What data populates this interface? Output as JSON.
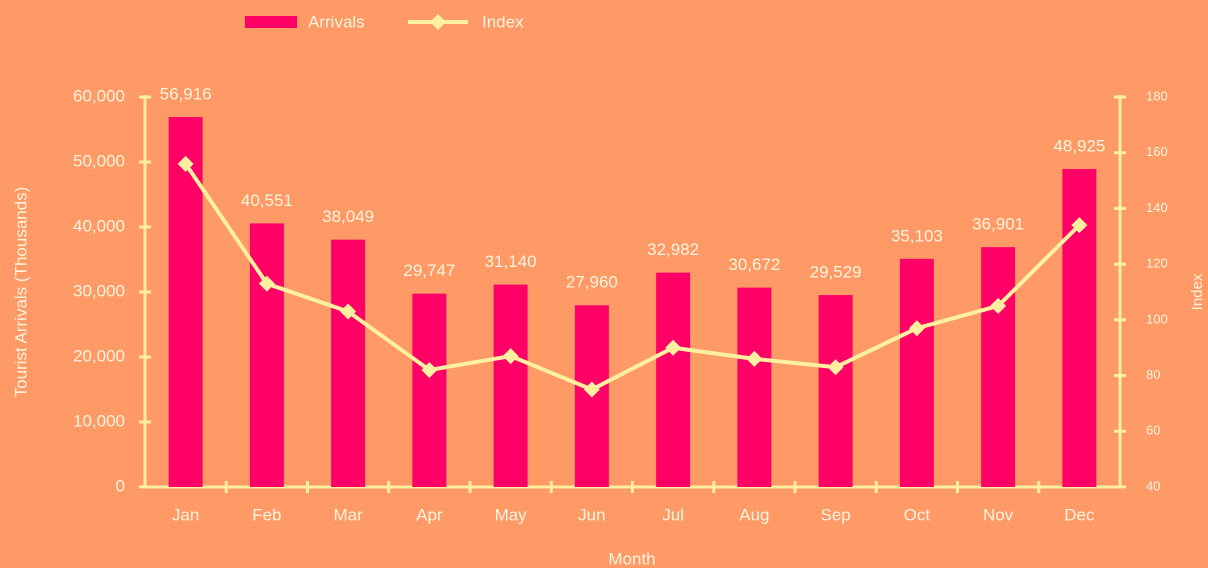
{
  "chart_data": {
    "type": "bar_line",
    "categories": [
      "Jan",
      "Feb",
      "Mar",
      "Apr",
      "May",
      "Jun",
      "Jul",
      "Aug",
      "Sep",
      "Oct",
      "Nov",
      "Dec"
    ],
    "series": [
      {
        "name": "Arrivals",
        "type": "bar",
        "color": "#ff0066",
        "values": [
          56916,
          40551,
          38049,
          29747,
          31140,
          27960,
          32982,
          30672,
          29529,
          35103,
          36901,
          48925
        ],
        "value_labels": [
          "56,916",
          "40,551",
          "38,049",
          "29,747",
          "31,140",
          "27,960",
          "32,982",
          "30,672",
          "29,529",
          "35,103",
          "36,901",
          "48,925"
        ]
      },
      {
        "name": "Index",
        "type": "line",
        "axis": "y2",
        "color": "#fff0a0",
        "values": [
          156,
          113,
          103,
          82,
          87,
          75,
          90,
          86,
          83,
          97,
          105,
          134
        ]
      }
    ],
    "x_label": "Month",
    "y_label": "Tourist Arrivals (Thousands)",
    "y2_label": "Index",
    "ylim": [
      0,
      60000
    ],
    "yticks": [
      0,
      {
        "value": 10000,
        "label": "10,000"
      },
      {
        "value": 20000,
        "label": "20,000"
      },
      {
        "value": 30000,
        "label": "30,000"
      },
      {
        "value": 40000,
        "label": "40,000"
      },
      {
        "value": 50000,
        "label": "50,000"
      },
      {
        "value": 60000,
        "label": "60,000"
      }
    ],
    "y2lim": [
      40,
      180
    ],
    "y2ticks": [
      40,
      60,
      80,
      100,
      120,
      140,
      160,
      180
    ],
    "legend": "top",
    "grid": false
  }
}
